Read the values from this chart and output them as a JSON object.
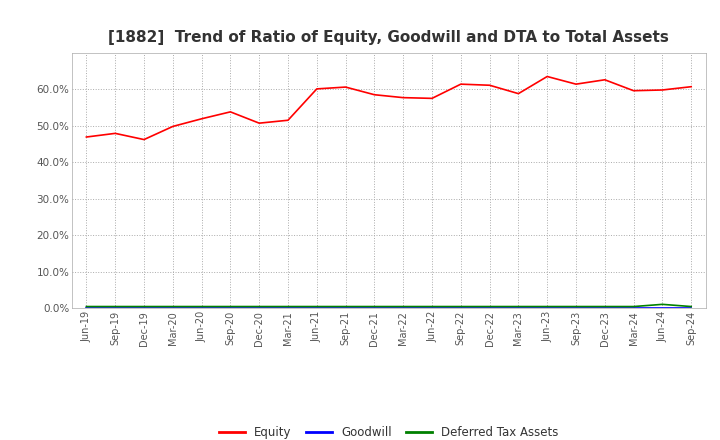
{
  "title": "[1882]  Trend of Ratio of Equity, Goodwill and DTA to Total Assets",
  "x_labels": [
    "Jun-19",
    "Sep-19",
    "Dec-19",
    "Mar-20",
    "Jun-20",
    "Sep-20",
    "Dec-20",
    "Mar-21",
    "Jun-21",
    "Sep-21",
    "Dec-21",
    "Mar-22",
    "Jun-22",
    "Sep-22",
    "Dec-22",
    "Mar-23",
    "Jun-23",
    "Sep-23",
    "Dec-23",
    "Mar-24",
    "Jun-24",
    "Sep-24"
  ],
  "equity": [
    0.469,
    0.479,
    0.462,
    0.498,
    0.519,
    0.538,
    0.507,
    0.515,
    0.601,
    0.606,
    0.585,
    0.577,
    0.575,
    0.614,
    0.611,
    0.588,
    0.635,
    0.614,
    0.626,
    0.596,
    0.598,
    0.607
  ],
  "goodwill": [
    0.0,
    0.0,
    0.0,
    0.0,
    0.0,
    0.0,
    0.0,
    0.0,
    0.0,
    0.0,
    0.0,
    0.0,
    0.0,
    0.0,
    0.0,
    0.0,
    0.0,
    0.0,
    0.0,
    0.0,
    0.0,
    0.0
  ],
  "dta": [
    0.004,
    0.004,
    0.004,
    0.004,
    0.004,
    0.004,
    0.004,
    0.004,
    0.004,
    0.004,
    0.004,
    0.004,
    0.004,
    0.004,
    0.004,
    0.004,
    0.004,
    0.004,
    0.004,
    0.004,
    0.01,
    0.004
  ],
  "equity_color": "#ff0000",
  "goodwill_color": "#0000ff",
  "dta_color": "#008000",
  "ylim": [
    0.0,
    0.7
  ],
  "yticks": [
    0.0,
    0.1,
    0.2,
    0.3,
    0.4,
    0.5,
    0.6
  ],
  "background_color": "#ffffff",
  "plot_bg_color": "#ffffff",
  "grid_color": "#aaaaaa",
  "title_fontsize": 11,
  "legend_labels": [
    "Equity",
    "Goodwill",
    "Deferred Tax Assets"
  ]
}
